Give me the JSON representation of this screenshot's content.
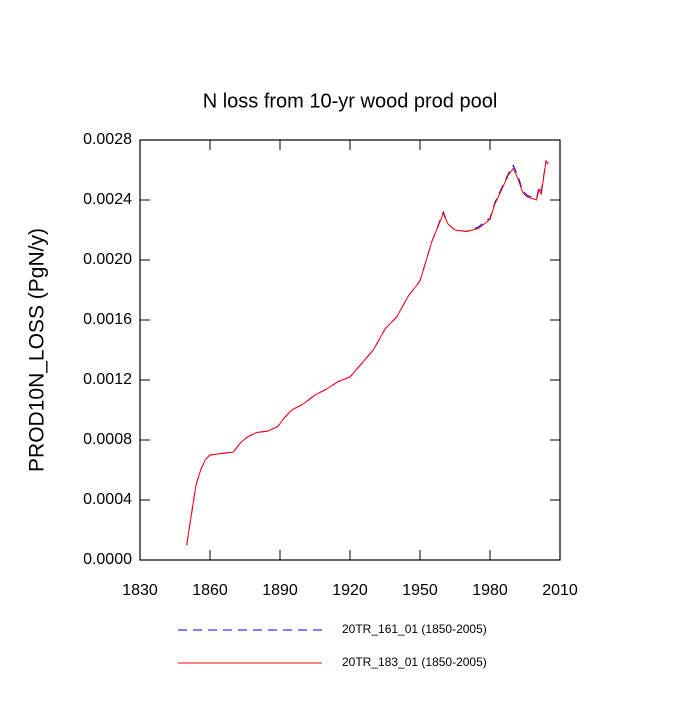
{
  "chart_data": {
    "type": "line",
    "title": "N loss from 10-yr wood prod pool",
    "y_label": "PROD10N_LOSS  (PgN/y)",
    "x": [
      1850,
      1852,
      1854,
      1856,
      1858,
      1860,
      1865,
      1870,
      1873,
      1876,
      1880,
      1885,
      1889,
      1892,
      1895,
      1900,
      1905,
      1910,
      1915,
      1920,
      1925,
      1930,
      1935,
      1940,
      1945,
      1950,
      1955,
      1960,
      1962,
      1965,
      1970,
      1975,
      1980,
      1982,
      1985,
      1988,
      1990,
      1992,
      1994,
      1996,
      2000,
      2001,
      2002,
      2004,
      2005
    ],
    "series": [
      {
        "name": "20TR_161_01 (1850-2005)",
        "color": "#0000ff",
        "dash": true,
        "values": [
          0.0001,
          0.0003,
          0.0005,
          0.0006,
          0.00067,
          0.0007,
          0.00071,
          0.00072,
          0.00078,
          0.00082,
          0.00085,
          0.00086,
          0.00089,
          0.00095,
          0.001,
          0.00104,
          0.0011,
          0.00114,
          0.00119,
          0.00122,
          0.00131,
          0.0014,
          0.00154,
          0.00162,
          0.00176,
          0.00186,
          0.00212,
          0.00232,
          0.00224,
          0.0022,
          0.00219,
          0.00222,
          0.00228,
          0.00238,
          0.00248,
          0.00258,
          0.00263,
          0.00256,
          0.00246,
          0.00243,
          0.00241,
          0.00249,
          0.00246,
          0.00266,
          0.00264
        ]
      },
      {
        "name": "20TR_183_01 (1850-2005)",
        "color": "#ff0000",
        "dash": false,
        "values": [
          0.0001,
          0.0003,
          0.0005,
          0.0006,
          0.00067,
          0.0007,
          0.00071,
          0.00072,
          0.00078,
          0.00082,
          0.00085,
          0.00086,
          0.00089,
          0.00095,
          0.001,
          0.00104,
          0.0011,
          0.00114,
          0.00119,
          0.00122,
          0.00131,
          0.0014,
          0.00154,
          0.00162,
          0.00176,
          0.00186,
          0.00212,
          0.00231,
          0.00224,
          0.0022,
          0.00219,
          0.00221,
          0.00227,
          0.00237,
          0.00247,
          0.00257,
          0.00261,
          0.00254,
          0.00245,
          0.00242,
          0.0024,
          0.00247,
          0.00244,
          0.00266,
          0.00264
        ]
      }
    ],
    "xlim": [
      1830,
      2010
    ],
    "xticks": [
      1830,
      1860,
      1890,
      1920,
      1950,
      1980,
      2010
    ],
    "ylim": [
      0,
      0.0028
    ],
    "yticks": [
      {
        "value": 0,
        "label": "0.0000"
      },
      0.0004,
      0.0008,
      0.0012,
      0.0016,
      {
        "value": 0.002,
        "label": "0.0020"
      },
      0.0024,
      0.0028
    ]
  }
}
